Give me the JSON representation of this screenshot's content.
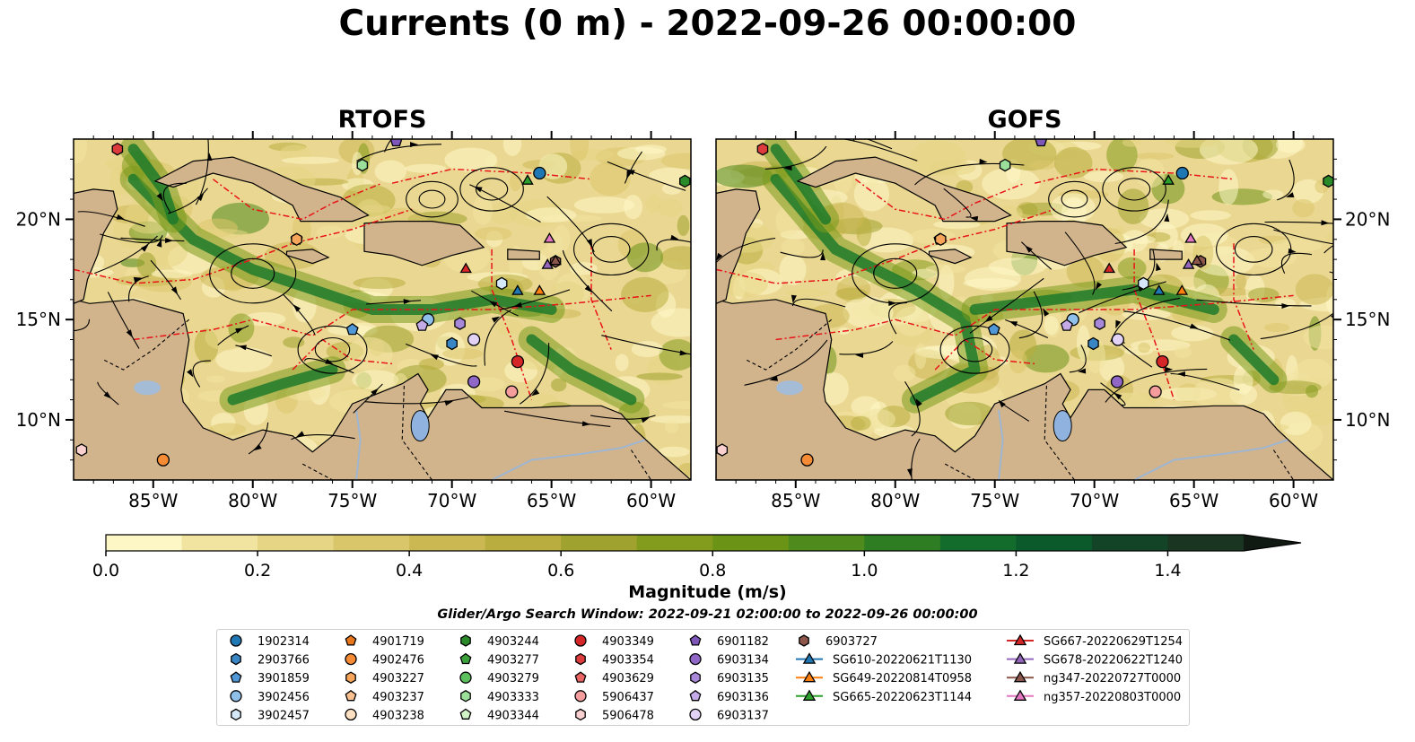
{
  "title": "Currents (0 m) - 2022-09-26 00:00:00",
  "chart_data": {
    "type": "heatmap",
    "panels": [
      {
        "title": "RTOFS"
      },
      {
        "title": "GOFS"
      }
    ],
    "x_ticks": [
      "85°W",
      "80°W",
      "75°W",
      "70°W",
      "65°W",
      "60°W"
    ],
    "x_tick_values": [
      -85,
      -80,
      -75,
      -70,
      -65,
      -60
    ],
    "y_ticks": [
      "10°N",
      "15°N",
      "20°N"
    ],
    "y_tick_values": [
      10,
      15,
      20
    ],
    "xlim": [
      -89,
      -58
    ],
    "ylim": [
      7,
      24
    ],
    "colorbar": {
      "label": "Magnitude (m/s)",
      "range": [
        0,
        1.5
      ],
      "step": 0.1,
      "extend": "max",
      "ticks": [
        "0.0",
        "0.2",
        "0.4",
        "0.6",
        "0.8",
        "1.0",
        "1.2",
        "1.4"
      ],
      "tick_values": [
        0,
        0.2,
        0.4,
        0.6,
        0.8,
        1.0,
        1.2,
        1.4
      ],
      "colors": [
        "#fdf7c6",
        "#f1e4a0",
        "#e5d585",
        "#dac66a",
        "#ccb853",
        "#b8ad3e",
        "#9fa22e",
        "#849c1e",
        "#6b9417",
        "#4f8a1c",
        "#2e7d23",
        "#136b2c",
        "#0b5a2c",
        "#134427",
        "#1a3521"
      ]
    },
    "search_window": "Glider/Argo Search Window: 2022-09-21 02:00:00 to 2022-09-26 00:00:00",
    "legend": [
      {
        "label": "1902314",
        "marker": "circle",
        "color": "#1f77b4"
      },
      {
        "label": "2903766",
        "marker": "hexagon",
        "color": "#3a85c4"
      },
      {
        "label": "3901859",
        "marker": "pentagon",
        "color": "#4f97d6"
      },
      {
        "label": "3902456",
        "marker": "circle",
        "color": "#8fc0ea"
      },
      {
        "label": "3902457",
        "marker": "hexagon",
        "color": "#d4e8fa"
      },
      {
        "label": "4901719",
        "marker": "pentagon",
        "color": "#e8761a"
      },
      {
        "label": "4902476",
        "marker": "circle",
        "color": "#f58c35"
      },
      {
        "label": "4903227",
        "marker": "hexagon",
        "color": "#f7a55a"
      },
      {
        "label": "4903237",
        "marker": "pentagon",
        "color": "#f9c18f"
      },
      {
        "label": "4903238",
        "marker": "circle",
        "color": "#fde0c2"
      },
      {
        "label": "4903244",
        "marker": "hexagon",
        "color": "#2a8a2a"
      },
      {
        "label": "4903277",
        "marker": "pentagon",
        "color": "#3ba13b"
      },
      {
        "label": "4903279",
        "marker": "circle",
        "color": "#5cc05c"
      },
      {
        "label": "4903333",
        "marker": "hexagon",
        "color": "#9adf9a"
      },
      {
        "label": "4903344",
        "marker": "pentagon",
        "color": "#d2f5c8"
      },
      {
        "label": "4903349",
        "marker": "circle",
        "color": "#d62728"
      },
      {
        "label": "4903354",
        "marker": "hexagon",
        "color": "#dd3c3c"
      },
      {
        "label": "4903629",
        "marker": "pentagon",
        "color": "#ec6565"
      },
      {
        "label": "5906437",
        "marker": "circle",
        "color": "#f59c9c"
      },
      {
        "label": "5906478",
        "marker": "hexagon",
        "color": "#fbd0d0"
      },
      {
        "label": "6901182",
        "marker": "pentagon",
        "color": "#7e57b8"
      },
      {
        "label": "6903134",
        "marker": "circle",
        "color": "#9067c6"
      },
      {
        "label": "6903135",
        "marker": "hexagon",
        "color": "#a888d8"
      },
      {
        "label": "6903136",
        "marker": "pentagon",
        "color": "#c4abe8"
      },
      {
        "label": "6903137",
        "marker": "circle",
        "color": "#e2d3f6"
      },
      {
        "label": "6903727",
        "marker": "hexagon",
        "color": "#8c564b"
      },
      {
        "label": "SG610-20220621T1130",
        "marker": "triangle-line",
        "color": "#1f77b4"
      },
      {
        "label": "SG649-20220814T0958",
        "marker": "triangle-line",
        "color": "#ff7f0e"
      },
      {
        "label": "SG665-20220623T1144",
        "marker": "triangle-line",
        "color": "#2ca02c"
      },
      {
        "label": "SG667-20220629T1254",
        "marker": "triangle-line",
        "color": "#d62728"
      },
      {
        "label": "SG678-20220622T1240",
        "marker": "triangle-line",
        "color": "#9467bd"
      },
      {
        "label": "ng347-20220727T0000",
        "marker": "triangle-line",
        "color": "#8c564b"
      },
      {
        "label": "ng357-20220803T0000",
        "marker": "triangle-line",
        "color": "#e377c2"
      }
    ],
    "markers": [
      {
        "id": "1902314",
        "lon": -65.6,
        "lat": 22.3
      },
      {
        "id": "2903766",
        "lon": -70.0,
        "lat": 13.8
      },
      {
        "id": "3901859",
        "lon": -75.0,
        "lat": 14.5
      },
      {
        "id": "3902456",
        "lon": -71.2,
        "lat": 15.0
      },
      {
        "id": "3902457",
        "lon": -67.5,
        "lat": 16.8
      },
      {
        "id": "4901719",
        "lon": -77.8,
        "lat": 19.0
      },
      {
        "id": "4902476",
        "lon": -84.5,
        "lat": 8.0
      },
      {
        "id": "4903227",
        "lon": -77.8,
        "lat": 19.0
      },
      {
        "id": "4903244",
        "lon": -58.3,
        "lat": 21.9
      },
      {
        "id": "4903333",
        "lon": -74.5,
        "lat": 22.7
      },
      {
        "id": "4903349",
        "lon": -66.7,
        "lat": 12.9
      },
      {
        "id": "4903354",
        "lon": -86.8,
        "lat": 23.5
      },
      {
        "id": "5906437",
        "lon": -67.0,
        "lat": 11.4
      },
      {
        "id": "5906478",
        "lon": -88.6,
        "lat": 8.5
      },
      {
        "id": "6901182",
        "lon": -72.8,
        "lat": 23.9
      },
      {
        "id": "6903134",
        "lon": -68.9,
        "lat": 11.9
      },
      {
        "id": "6903135",
        "lon": -69.6,
        "lat": 14.8
      },
      {
        "id": "6903136",
        "lon": -71.5,
        "lat": 14.7
      },
      {
        "id": "6903137",
        "lon": -68.9,
        "lat": 14.0
      },
      {
        "id": "6903727",
        "lon": -64.8,
        "lat": 17.9
      },
      {
        "id": "SG610-20220621T1130",
        "lon": -66.7,
        "lat": 16.4
      },
      {
        "id": "SG649-20220814T0958",
        "lon": -65.6,
        "lat": 16.4
      },
      {
        "id": "SG665-20220623T1144",
        "lon": -66.2,
        "lat": 21.9
      },
      {
        "id": "SG667-20220629T1254",
        "lon": -69.3,
        "lat": 17.5
      },
      {
        "id": "SG678-20220622T1240",
        "lon": -65.2,
        "lat": 17.7
      },
      {
        "id": "ng347-20220727T0000",
        "lon": -64.8,
        "lat": 17.9
      },
      {
        "id": "ng357-20220803T0000",
        "lon": -65.1,
        "lat": 19.0
      }
    ]
  }
}
